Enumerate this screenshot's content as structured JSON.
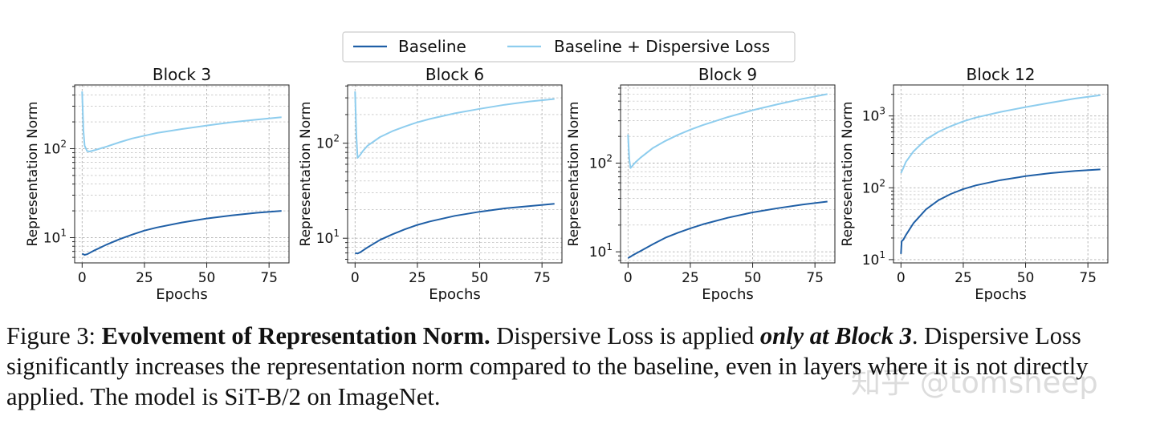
{
  "legend": {
    "entries": [
      {
        "label": "Baseline",
        "color": "#1f5fa6"
      },
      {
        "label": "Baseline + Dispersive Loss",
        "color": "#8ecdee"
      }
    ]
  },
  "caption": {
    "prefix": "Figure 3: ",
    "bold_title": "Evolvement of Representation Norm.",
    "text1": " Dispersive Loss is applied ",
    "bold_italic": "only at Block 3",
    "text2": ". Dispersive Loss significantly increases the representation norm compared to the baseline, even in layers where it is not directly applied. The model is SiT-B/2 on ImageNet."
  },
  "watermark": "知乎 @tomsheep",
  "colors": {
    "baseline": "#1f5fa6",
    "dispersive": "#8ecdee",
    "grid": "#b0b0b0"
  },
  "chart_data": [
    {
      "type": "line",
      "title": "Block 3",
      "xlabel": "Epochs",
      "ylabel": "Representation Norm",
      "yscale": "log",
      "xlim": [
        -3,
        83
      ],
      "ylim": [
        5.2,
        520
      ],
      "xticks": [
        0,
        25,
        50,
        75
      ],
      "yticks": [
        {
          "value": 10,
          "label": "10^1"
        },
        {
          "value": 100,
          "label": "10^2"
        }
      ],
      "grid": true,
      "series": [
        {
          "name": "Baseline",
          "x": [
            0,
            1,
            2,
            5,
            10,
            15,
            20,
            25,
            30,
            40,
            50,
            60,
            70,
            80
          ],
          "values": [
            6.6,
            6.4,
            6.5,
            7.2,
            8.4,
            9.6,
            10.8,
            12.0,
            13.0,
            14.8,
            16.4,
            17.8,
            19.0,
            20.0
          ]
        },
        {
          "name": "Baseline + Dispersive Loss",
          "x": [
            0,
            0.5,
            1,
            2,
            3,
            5,
            10,
            15,
            20,
            25,
            30,
            40,
            50,
            60,
            70,
            80
          ],
          "values": [
            440,
            160,
            108,
            94,
            93,
            96,
            106,
            118,
            130,
            140,
            150,
            166,
            182,
            198,
            212,
            226
          ]
        }
      ]
    },
    {
      "type": "line",
      "title": "Block 6",
      "xlabel": "Epochs",
      "ylabel": "Representation Norm",
      "yscale": "log",
      "xlim": [
        -3,
        83
      ],
      "ylim": [
        5.5,
        410
      ],
      "xticks": [
        0,
        25,
        50,
        75
      ],
      "yticks": [
        {
          "value": 10,
          "label": "10^1"
        },
        {
          "value": 100,
          "label": "10^2"
        }
      ],
      "grid": true,
      "series": [
        {
          "name": "Baseline",
          "x": [
            0,
            1,
            2,
            5,
            10,
            15,
            20,
            25,
            30,
            40,
            50,
            60,
            70,
            80
          ],
          "values": [
            7.0,
            6.9,
            7.1,
            8.0,
            9.6,
            11.0,
            12.4,
            13.8,
            15.0,
            17.2,
            19.0,
            20.6,
            21.8,
            23.0
          ]
        },
        {
          "name": "Baseline + Dispersive Loss",
          "x": [
            0,
            0.5,
            1,
            2,
            3,
            5,
            10,
            15,
            20,
            25,
            30,
            40,
            50,
            60,
            70,
            80
          ],
          "values": [
            350,
            120,
            70,
            75,
            82,
            94,
            116,
            134,
            150,
            166,
            180,
            206,
            230,
            254,
            275,
            292
          ]
        }
      ]
    },
    {
      "type": "line",
      "title": "Block 9",
      "xlabel": "Epochs",
      "ylabel": "Representation Norm",
      "yscale": "log",
      "xlim": [
        -3,
        83
      ],
      "ylim": [
        7.5,
        760
      ],
      "xticks": [
        0,
        25,
        50,
        75
      ],
      "yticks": [
        {
          "value": 10,
          "label": "10^1"
        },
        {
          "value": 100,
          "label": "10^2"
        }
      ],
      "grid": true,
      "series": [
        {
          "name": "Baseline",
          "x": [
            0,
            1,
            2,
            5,
            10,
            15,
            20,
            25,
            30,
            40,
            50,
            60,
            70,
            80
          ],
          "values": [
            8.5,
            8.8,
            9.2,
            10.2,
            12.2,
            14.4,
            16.4,
            18.4,
            20.4,
            24.2,
            27.8,
            31.0,
            34.0,
            36.8
          ]
        },
        {
          "name": "Baseline + Dispersive Loss",
          "x": [
            0,
            0.5,
            1,
            2,
            3,
            5,
            10,
            15,
            20,
            25,
            30,
            40,
            50,
            60,
            70,
            80
          ],
          "values": [
            210,
            110,
            88,
            95,
            102,
            115,
            148,
            178,
            208,
            238,
            268,
            330,
            395,
            460,
            530,
            600
          ]
        }
      ]
    },
    {
      "type": "line",
      "title": "Block 12",
      "xlabel": "Epochs",
      "ylabel": "Representation Norm",
      "yscale": "log",
      "xlim": [
        -3,
        83
      ],
      "ylim": [
        9,
        2700
      ],
      "xticks": [
        0,
        25,
        50,
        75
      ],
      "yticks": [
        {
          "value": 10,
          "label": "10^1"
        },
        {
          "value": 100,
          "label": "10^2"
        },
        {
          "value": 1000,
          "label": "10^3"
        }
      ],
      "grid": true,
      "series": [
        {
          "name": "Baseline",
          "x": [
            0,
            0.3,
            1,
            2,
            5,
            10,
            15,
            20,
            25,
            30,
            40,
            50,
            60,
            70,
            80
          ],
          "values": [
            12,
            18,
            19,
            22,
            32,
            50,
            67,
            82,
            96,
            108,
            128,
            145,
            160,
            172,
            180
          ]
        },
        {
          "name": "Baseline + Dispersive Loss",
          "x": [
            0,
            1,
            2,
            5,
            10,
            15,
            20,
            25,
            30,
            40,
            50,
            60,
            70,
            80
          ],
          "values": [
            160,
            190,
            230,
            320,
            470,
            600,
            720,
            840,
            950,
            1140,
            1330,
            1530,
            1750,
            1950
          ]
        }
      ]
    }
  ]
}
